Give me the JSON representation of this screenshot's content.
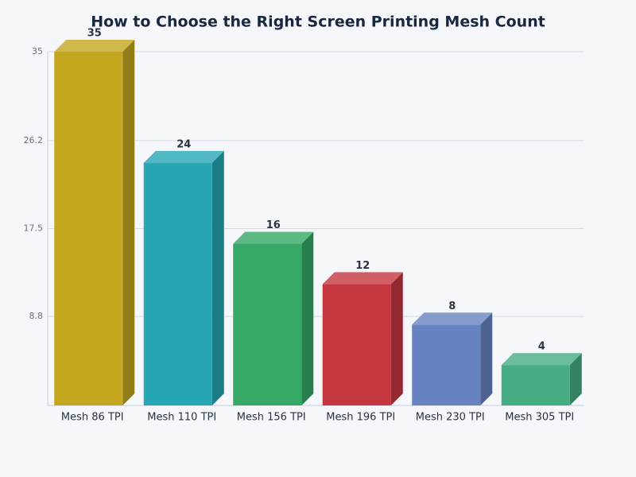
{
  "chart_data": {
    "type": "bar3d",
    "title": "How to Choose the Right Screen Printing Mesh Count",
    "categories": [
      "Mesh 86 TPI",
      "Mesh 110 TPI",
      "Mesh 156 TPI",
      "Mesh 196 TPI",
      "Mesh 230 TPI",
      "Mesh 305 TPI"
    ],
    "values": [
      35,
      24,
      16,
      12,
      8,
      4
    ],
    "colors": [
      "#c4a71f",
      "#27a6b4",
      "#36a866",
      "#c5373f",
      "#6883c1",
      "#47ad84"
    ],
    "ylim": [
      0,
      35
    ],
    "yticks": [
      8.8,
      17.5,
      26.2,
      35
    ],
    "grid": true
  }
}
